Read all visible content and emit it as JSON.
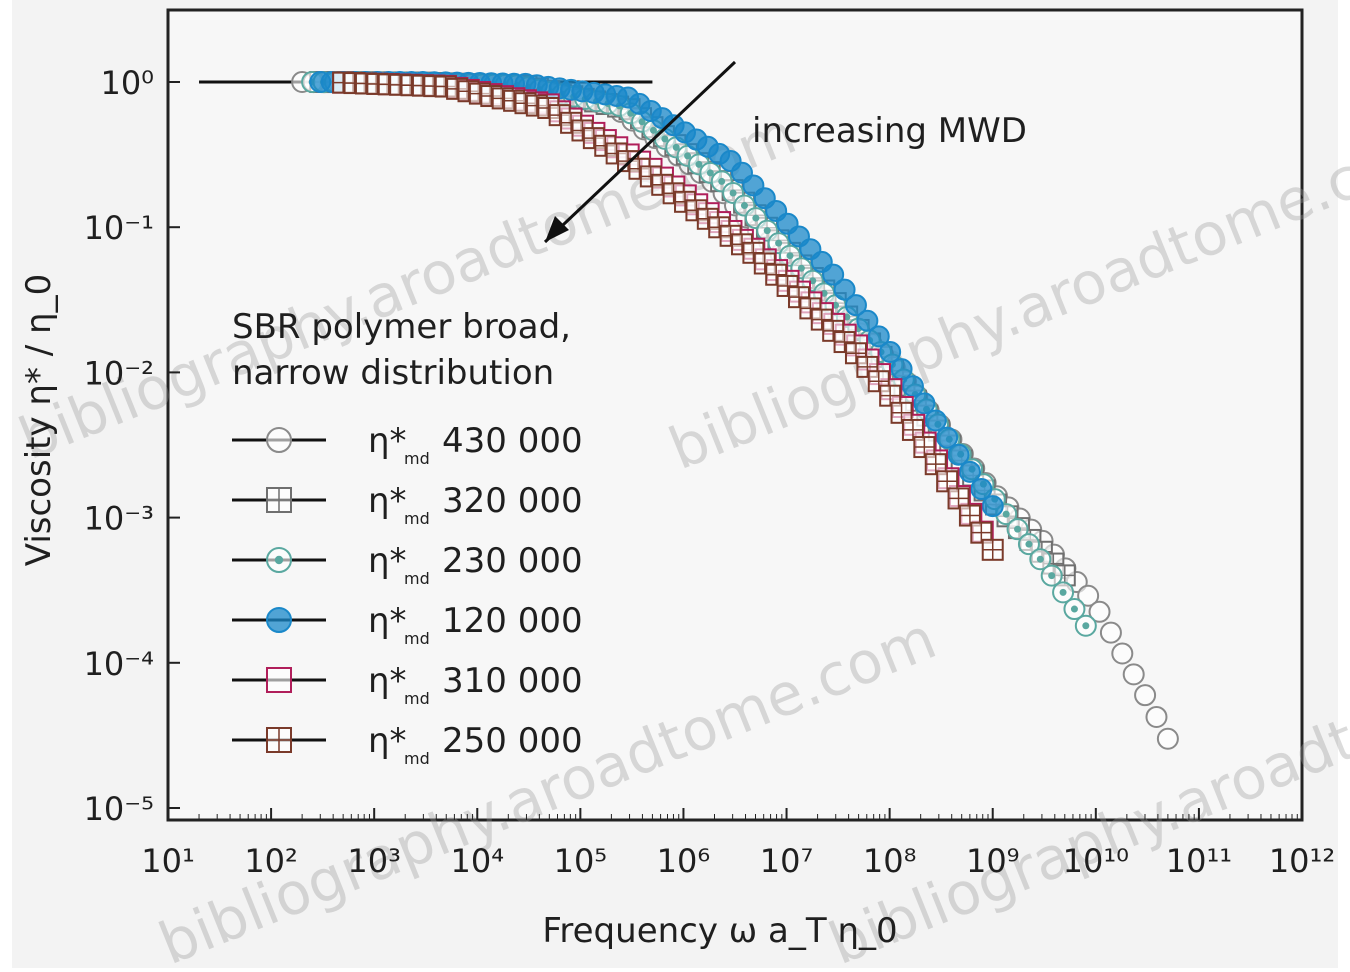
{
  "chart_data": {
    "type": "scatter",
    "title": "",
    "xlabel": "Frequency ω a_T η_0",
    "ylabel": "Viscosity η* / η_0",
    "x_scale": "log",
    "y_scale": "log",
    "xlim": [
      10,
      1000000000000.0
    ],
    "ylim": [
      1e-05,
      1
    ],
    "x_ticks": [
      10,
      100,
      1000,
      10000,
      100000,
      1000000,
      10000000,
      100000000,
      1000000000,
      10000000000,
      100000000000,
      1000000000000
    ],
    "x_tick_labels": [
      "10¹",
      "10²",
      "10³",
      "10⁴",
      "10⁵",
      "10⁶",
      "10⁷",
      "10⁸",
      "10⁹",
      "10¹⁰",
      "10¹¹",
      "10¹²"
    ],
    "y_ticks": [
      1,
      0.1,
      0.01,
      0.001,
      0.0001,
      1e-05
    ],
    "y_tick_labels": [
      "10⁰",
      "10⁻¹",
      "10⁻²",
      "10⁻³",
      "10⁻⁴",
      "10⁻⁵"
    ],
    "grid": false,
    "legend_position": "left",
    "legend_title": "SBR polymer broad, narrow distribution",
    "annotation": "increasing MWD",
    "reference_line": {
      "x": [
        20,
        500000
      ],
      "y": [
        1,
        1
      ]
    },
    "series": [
      {
        "name": "η*ₘₒ 430 000",
        "marker": "circle-open",
        "color": "#8a8a8a",
        "x": [
          200,
          2000,
          20000,
          200000,
          2000000,
          20000000,
          100000000,
          1000000000,
          3000000000,
          10000000000,
          30000000000,
          50000000000
        ],
        "y": [
          1,
          0.99,
          0.95,
          0.7,
          0.2,
          0.035,
          0.012,
          0.0015,
          0.0007,
          0.00025,
          6e-05,
          3e-05
        ]
      },
      {
        "name": "η*ₘₒ 320 000",
        "marker": "square-cross",
        "color": "#6f6f6f",
        "x": [
          300,
          3000,
          30000,
          300000,
          3000000,
          30000000,
          100000000,
          1000000000,
          5000000000
        ],
        "y": [
          1,
          0.99,
          0.94,
          0.65,
          0.18,
          0.03,
          0.011,
          0.0013,
          0.0004
        ]
      },
      {
        "name": "η*ₘₒ 230 000",
        "marker": "circle-dotted",
        "color": "#5aa8a0",
        "x": [
          250,
          2500,
          25000,
          250000,
          2500000,
          25000000,
          100000000,
          1000000000,
          3000000000,
          8000000000
        ],
        "y": [
          1,
          0.99,
          0.95,
          0.68,
          0.2,
          0.033,
          0.012,
          0.0014,
          0.0005,
          0.00018
        ]
      },
      {
        "name": "η*ₘₒ 120 000",
        "marker": "circle-half",
        "color": "#1a88c9",
        "x": [
          300,
          3000,
          30000,
          300000,
          3000000,
          30000000,
          100000000,
          1000000000
        ],
        "y": [
          1,
          1,
          0.97,
          0.78,
          0.28,
          0.045,
          0.014,
          0.0012
        ]
      },
      {
        "name": "η*ₘₒ 310 000",
        "marker": "square-open",
        "color": "#b01e5a",
        "x": [
          500,
          5000,
          50000,
          500000,
          5000000,
          50000000,
          100000000,
          800000000
        ],
        "y": [
          0.99,
          0.94,
          0.7,
          0.25,
          0.07,
          0.015,
          0.008,
          0.0008
        ]
      },
      {
        "name": "η*ₘₒ 250 000",
        "marker": "square-grid",
        "color": "#7a3a2a",
        "x": [
          500,
          5000,
          50000,
          500000,
          5000000,
          50000000,
          100000000,
          1000000000
        ],
        "y": [
          0.99,
          0.93,
          0.66,
          0.22,
          0.065,
          0.013,
          0.007,
          0.0006
        ]
      }
    ]
  },
  "legend_entries": [
    {
      "prefix": "η*",
      "sub": "md",
      "value": "430 000"
    },
    {
      "prefix": "η*",
      "sub": "md",
      "value": "320 000"
    },
    {
      "prefix": "η*",
      "sub": "md",
      "value": "230 000"
    },
    {
      "prefix": "η*",
      "sub": "md",
      "value": "120 000"
    },
    {
      "prefix": "η*",
      "sub": "md",
      "value": "310 000"
    },
    {
      "prefix": "η*",
      "sub": "md",
      "value": "250 000"
    }
  ],
  "legend_title_lines": [
    "SBR polymer broad,",
    "narrow distribution"
  ],
  "watermarks": [
    "bibliography.aroadtome.com",
    "bibliography.aroadtome.com",
    "bibliography.aroadtome.com",
    "bibliography.aroadtome.com"
  ]
}
